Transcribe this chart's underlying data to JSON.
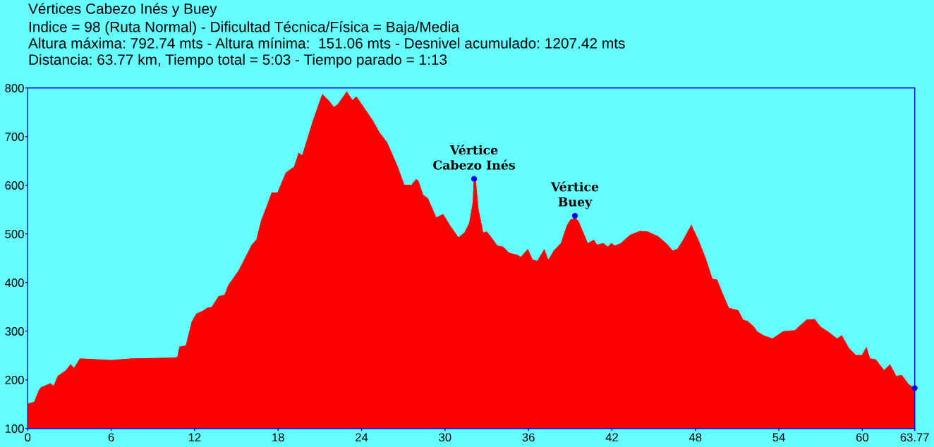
{
  "chart_data": {
    "type": "area",
    "title": "Vértices Cabezo Inés y Buey",
    "subtitle": "Indice = 98 (Ruta Normal) - Dificultad Técnica/Física = Baja/Media\nAltura máxima: 792.74 mts - Altura mínima:  151.06 mts - Desnivel acumulado: 1207.42 mts\nDistancia: 63.77 km, Tiempo total = 5:03 - Tiempo parado = 1:13",
    "xlim": [
      0,
      63.77
    ],
    "xticks": [
      0,
      6,
      12,
      18,
      24,
      30,
      36,
      42,
      48,
      54,
      60,
      63.77
    ],
    "ylim": [
      100,
      800
    ],
    "yticks": [
      100,
      200,
      300,
      400,
      500,
      600,
      700,
      800
    ],
    "series": [
      {
        "color": "#ff0000",
        "x": [
          0,
          0.46,
          0.8,
          0.96,
          1.64,
          1.86,
          2.15,
          2.74,
          3.08,
          3.33,
          3.75,
          4.5,
          6.0,
          7.5,
          9.0,
          10.6,
          10.75,
          10.9,
          11.36,
          11.78,
          12.12,
          12.66,
          12.88,
          13.22,
          13.72,
          14.15,
          14.4,
          15.16,
          15.59,
          16.1,
          16.43,
          16.77,
          17.28,
          17.53,
          17.95,
          18.55,
          19.14,
          19.47,
          19.73,
          20.49,
          21.17,
          21.68,
          22.01,
          22.27,
          22.94,
          23.36,
          23.62,
          24.04,
          24.8,
          25.31,
          25.85,
          26.58,
          27.08,
          27.59,
          27.93,
          28.1,
          28.44,
          28.78,
          29.37,
          29.87,
          30.38,
          30.97,
          31.39,
          31.73,
          31.99,
          32.07,
          32.15,
          32.24,
          32.41,
          32.75,
          33.0,
          33.34,
          33.77,
          34.18,
          34.61,
          35.2,
          35.45,
          35.96,
          36.3,
          36.64,
          37.14,
          37.43,
          37.82,
          38.33,
          38.58,
          38.75,
          39.0,
          39.34,
          39.59,
          40.27,
          40.7,
          40.94,
          41.37,
          41.71,
          41.96,
          42.22,
          42.64,
          43.31,
          43.99,
          44.58,
          45.34,
          46.02,
          46.36,
          46.7,
          47.12,
          47.71,
          48.22,
          48.72,
          49.23,
          49.57,
          49.9,
          50.41,
          51.09,
          51.43,
          51.76,
          52.22,
          52.44,
          52.87,
          53.54,
          54.3,
          55.15,
          55.99,
          56.58,
          57.01,
          57.51,
          58.19,
          58.53,
          59.03,
          59.54,
          59.97,
          60.3,
          60.56,
          60.98,
          61.57,
          61.99,
          62.45,
          62.84,
          63.34,
          63.77
        ],
        "values": [
          151,
          155,
          179,
          185,
          193,
          188,
          208,
          220,
          232,
          225,
          244,
          243,
          241,
          244,
          245,
          246,
          247,
          268,
          271,
          319,
          336,
          343,
          348,
          350,
          372,
          375,
          394,
          425,
          449,
          478,
          488,
          527,
          565,
          585,
          585,
          626,
          638,
          667,
          662,
          732,
          788,
          773,
          761,
          766,
          793,
          775,
          783,
          766,
          734,
          708,
          688,
          640,
          601,
          601,
          613,
          609,
          580,
          573,
          534,
          541,
          517,
          493,
          503,
          522,
          565,
          619,
          619,
          604,
          551,
          503,
          505,
          493,
          476,
          474,
          461,
          457,
          453,
          469,
          447,
          445,
          469,
          447,
          466,
          481,
          503,
          517,
          529,
          533,
          527,
          481,
          488,
          478,
          481,
          474,
          481,
          476,
          481,
          498,
          506,
          505,
          495,
          478,
          466,
          469,
          488,
          519,
          488,
          452,
          408,
          406,
          382,
          348,
          343,
          324,
          321,
          309,
          300,
          292,
          285,
          300,
          302,
          324,
          325,
          309,
          300,
          285,
          292,
          266,
          251,
          251,
          268,
          244,
          242,
          220,
          232,
          208,
          210,
          191,
          183
        ]
      },
      {
        "type": "scatter",
        "color": "#0000ff",
        "marker": "circle",
        "x": [
          32.09,
          39.34,
          63.77
        ],
        "values": [
          613,
          537,
          183
        ]
      }
    ],
    "annotations": [
      {
        "text": "Vértice\nCabezo Inés",
        "x": 32.09,
        "y": 613
      },
      {
        "text": "Vértice\nBuey",
        "x": 39.34,
        "y": 537
      }
    ]
  }
}
